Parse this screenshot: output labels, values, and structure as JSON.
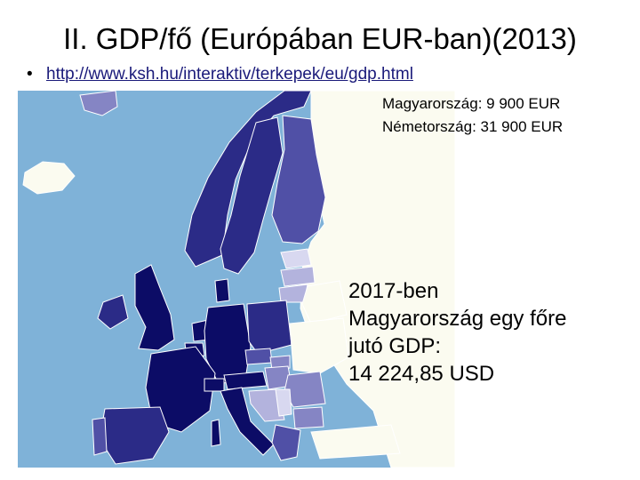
{
  "title": "II. GDP/fő (Európában EUR-ban)(2013)",
  "bullet": {
    "symbol": "•",
    "link_text": "http://www.ksh.hu/interaktiv/terkepek/eu/gdp.html"
  },
  "info": [
    "Magyarország:  9 900 EUR",
    "Németország: 31 900 EUR"
  ],
  "note": [
    "2017-ben",
    "Magyarország egy főre",
    "jutó GDP:",
    "14 224,85 USD"
  ],
  "map": {
    "colors": {
      "sea": "#7fb2d8",
      "no_data": "#fbfbf0",
      "very_high": "#0c0c66",
      "high": "#2b2b87",
      "upper_mid": "#5050a6",
      "mid": "#8585c4",
      "low": "#b3b3dd",
      "very_low": "#d8d8f0",
      "outline": "#ffffff"
    }
  }
}
